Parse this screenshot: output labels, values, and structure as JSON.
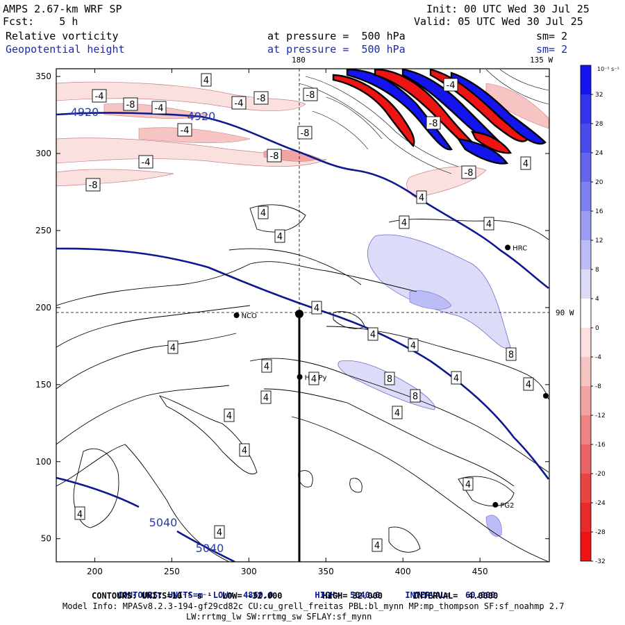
{
  "header": {
    "model": "AMPS 2.67-km WRF SP",
    "fcst": "Fcst:    5 h",
    "init": "Init: 00 UTC Wed 30 Jul 25",
    "valid": "Valid: 05 UTC Wed 30 Jul 25",
    "field1": "Relative vorticity",
    "field2": "Geopotential height",
    "pressure1": "at pressure =  500 hPa",
    "pressure2": "at pressure =  500 hPa",
    "sm1": "sm= 2",
    "sm2": "sm= 2"
  },
  "map": {
    "meridian_label_top": "180",
    "meridian_label_right_top": "135 W",
    "parallel_label_right": "90 W",
    "x_ticks": [
      "200",
      "250",
      "300",
      "350",
      "400",
      "450"
    ],
    "y_ticks": [
      "50",
      "100",
      "150",
      "200",
      "250",
      "300",
      "350"
    ],
    "x_range": [
      175,
      495
    ],
    "y_range": [
      35,
      355
    ],
    "stations": [
      {
        "name": "NCO",
        "x": 292,
        "y": 195
      },
      {
        "name": "HRC",
        "x": 468,
        "y": 239
      },
      {
        "name": "PG2",
        "x": 460,
        "y": 72
      },
      {
        "name": "HenPy",
        "x": 333,
        "y": 155
      }
    ],
    "height_labels": [
      "4920",
      "4920",
      "5040",
      "5040"
    ],
    "vort_labels": [
      "-4",
      "-8",
      "-4",
      "4",
      "-4",
      "-8",
      "-8",
      "-4",
      "-8",
      "-4",
      "-8",
      "-8",
      "4",
      "4",
      "4",
      "4",
      "4",
      "4",
      "4",
      "8",
      "8",
      "8",
      "4",
      "4",
      "4",
      "4",
      "4",
      "4",
      "4",
      "4",
      "4",
      "4",
      "4",
      "-8",
      "-4",
      "-8",
      "4",
      "4",
      "4"
    ]
  },
  "colorbar": {
    "unit": "10⁻⁵ s⁻¹",
    "levels": [
      "32",
      "28",
      "24",
      "20",
      "16",
      "12",
      "8",
      "4",
      "0",
      "-4",
      "-8",
      "-12",
      "-16",
      "-20",
      "-24",
      "-28",
      "-32"
    ],
    "colors": [
      "#1414ee",
      "#3434f0",
      "#4a4aee",
      "#6464ee",
      "#8080f0",
      "#9c9cf2",
      "#bcbcf6",
      "#dcdcf8",
      "#ffffff",
      "#fbe0e0",
      "#f7c4c4",
      "#f2a4a4",
      "#ee8484",
      "#ea6464",
      "#e84444",
      "#e82a2a",
      "#ee1414"
    ]
  },
  "footer": {
    "line1_a": "CONTOURS: UNITS=m  LOW=  4860.0",
    "line1_b": "HIGH=  5040.0",
    "line1_c": "INTERVAL=   60.000",
    "line2": "CONTOURS: UNITS=10⁻⁵ s⁻¹  LOW= -32.000        HIGH= 32.000      INTERVAL=  4.0000",
    "line3": "Model Info: MPASv8.2.3-194-gf29cd82c CU:cu_grell_freitas PBL:bl_mynn MP:mp_thompson SF:sf_noahmp 2.7",
    "line4": "LW:rrtmg_lw SW:rrtmg_sw SFLAY:sf_mynn"
  }
}
